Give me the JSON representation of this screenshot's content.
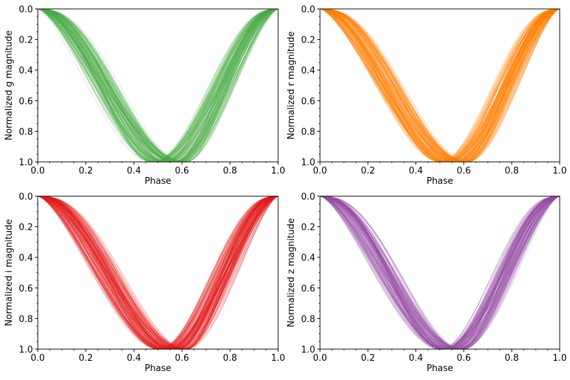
{
  "chart_data": [
    {
      "type": "line",
      "band": "g",
      "ylabel": "Normalized g  magnitude",
      "xlabel": "Phase",
      "xlim": [
        0.0,
        1.0
      ],
      "ylim": [
        1.0,
        0.0
      ],
      "y_inverted": true,
      "xticks": [
        "0.0",
        "0.2",
        "0.4",
        "0.6",
        "0.8",
        "1.0"
      ],
      "yticks": [
        "0.0",
        "0.2",
        "0.4",
        "0.6",
        "0.8",
        "1.0"
      ],
      "color": "#4daf4a",
      "n_curves": 180,
      "minimum_phase_range": [
        0.47,
        0.62
      ],
      "template": {
        "x": [
          0.0,
          0.05,
          0.1,
          0.2,
          0.3,
          0.4,
          0.5,
          0.55,
          0.6,
          0.7,
          0.8,
          0.9,
          0.95,
          1.0
        ],
        "y": [
          0.0,
          0.02,
          0.08,
          0.3,
          0.55,
          0.8,
          0.97,
          1.0,
          0.97,
          0.75,
          0.42,
          0.1,
          0.02,
          0.0
        ]
      }
    },
    {
      "type": "line",
      "band": "r",
      "ylabel": "Normalized r magnitude",
      "xlabel": "Phase",
      "xlim": [
        0.0,
        1.0
      ],
      "ylim": [
        1.0,
        0.0
      ],
      "y_inverted": true,
      "xticks": [
        "0.0",
        "0.2",
        "0.4",
        "0.6",
        "0.8",
        "1.0"
      ],
      "yticks": [
        "0.0",
        "0.2",
        "0.4",
        "0.6",
        "0.8",
        "1.0"
      ],
      "color": "#ff7f00",
      "n_curves": 180,
      "minimum_phase_range": [
        0.5,
        0.62
      ],
      "template": {
        "x": [
          0.0,
          0.05,
          0.1,
          0.2,
          0.3,
          0.4,
          0.5,
          0.55,
          0.6,
          0.7,
          0.8,
          0.9,
          0.95,
          1.0
        ],
        "y": [
          0.0,
          0.02,
          0.08,
          0.32,
          0.58,
          0.82,
          0.98,
          1.0,
          0.97,
          0.74,
          0.4,
          0.1,
          0.02,
          0.0
        ]
      }
    },
    {
      "type": "line",
      "band": "i",
      "ylabel": "Normalized i magnitude",
      "xlabel": "Phase",
      "xlim": [
        0.0,
        1.0
      ],
      "ylim": [
        1.0,
        0.0
      ],
      "y_inverted": true,
      "xticks": [
        "0.0",
        "0.2",
        "0.4",
        "0.6",
        "0.8",
        "1.0"
      ],
      "yticks": [
        "0.0",
        "0.2",
        "0.4",
        "0.6",
        "0.8",
        "1.0"
      ],
      "color": "#e41a1c",
      "n_curves": 180,
      "minimum_phase_range": [
        0.5,
        0.62
      ],
      "template": {
        "x": [
          0.0,
          0.05,
          0.1,
          0.2,
          0.3,
          0.4,
          0.5,
          0.55,
          0.6,
          0.7,
          0.8,
          0.9,
          0.95,
          1.0
        ],
        "y": [
          0.0,
          0.02,
          0.08,
          0.3,
          0.56,
          0.8,
          0.97,
          1.0,
          0.97,
          0.74,
          0.4,
          0.1,
          0.02,
          0.0
        ]
      }
    },
    {
      "type": "line",
      "band": "z",
      "ylabel": "Normalized z magnitude",
      "xlabel": "Phase",
      "xlim": [
        0.0,
        1.0
      ],
      "ylim": [
        1.0,
        0.0
      ],
      "y_inverted": true,
      "xticks": [
        "0.0",
        "0.2",
        "0.4",
        "0.6",
        "0.8",
        "1.0"
      ],
      "yticks": [
        "0.0",
        "0.2",
        "0.4",
        "0.6",
        "0.8",
        "1.0"
      ],
      "color": "#984ea3",
      "n_curves": 160,
      "minimum_phase_range": [
        0.5,
        0.6
      ],
      "template": {
        "x": [
          0.0,
          0.05,
          0.1,
          0.2,
          0.3,
          0.4,
          0.5,
          0.55,
          0.6,
          0.7,
          0.8,
          0.9,
          0.95,
          1.0
        ],
        "y": [
          0.0,
          0.02,
          0.08,
          0.32,
          0.58,
          0.82,
          0.98,
          1.0,
          0.97,
          0.74,
          0.4,
          0.1,
          0.02,
          0.0
        ]
      }
    }
  ]
}
